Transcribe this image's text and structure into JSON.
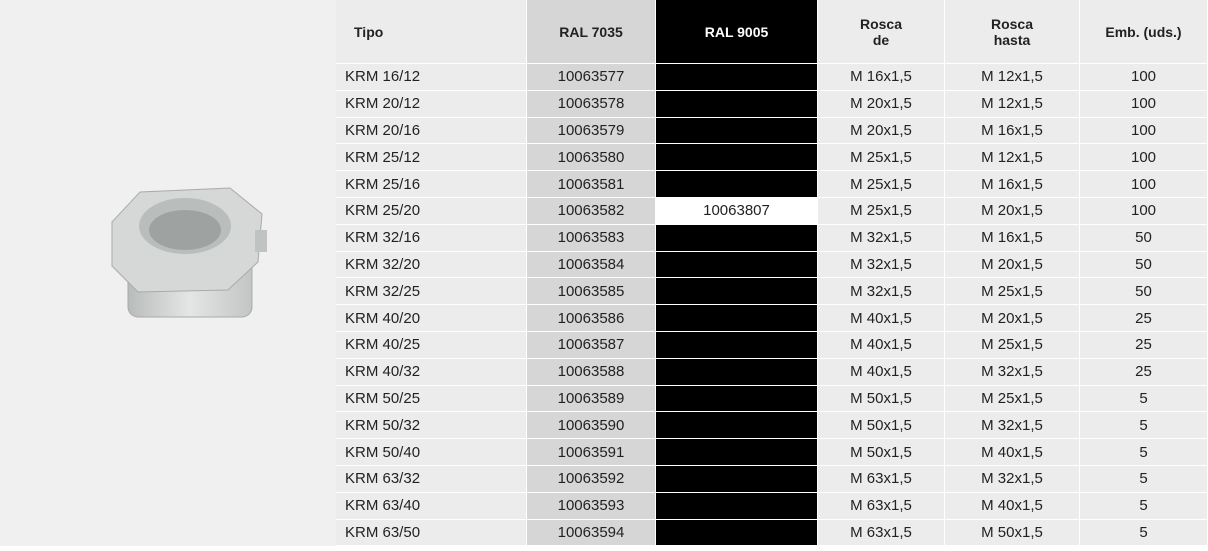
{
  "table": {
    "header": [
      "Tipo",
      "RAL 7035",
      "RAL 9005",
      "Rosca\nde",
      "Rosca\nhasta",
      "Emb. (uds.)"
    ],
    "rows": [
      [
        "KRM 16/12",
        "10063577",
        null,
        "M 16x1,5",
        "M 12x1,5",
        "100"
      ],
      [
        "KRM 20/12",
        "10063578",
        null,
        "M 20x1,5",
        "M 12x1,5",
        "100"
      ],
      [
        "KRM 20/16",
        "10063579",
        null,
        "M 20x1,5",
        "M 16x1,5",
        "100"
      ],
      [
        "KRM 25/12",
        "10063580",
        null,
        "M 25x1,5",
        "M 12x1,5",
        "100"
      ],
      [
        "KRM 25/16",
        "10063581",
        null,
        "M 25x1,5",
        "M 16x1,5",
        "100"
      ],
      [
        "KRM 25/20",
        "10063582",
        "10063807",
        "M 25x1,5",
        "M 20x1,5",
        "100"
      ],
      [
        "KRM 32/16",
        "10063583",
        null,
        "M 32x1,5",
        "M 16x1,5",
        "50"
      ],
      [
        "KRM 32/20",
        "10063584",
        null,
        "M 32x1,5",
        "M 20x1,5",
        "50"
      ],
      [
        "KRM 32/25",
        "10063585",
        null,
        "M 32x1,5",
        "M 25x1,5",
        "50"
      ],
      [
        "KRM 40/20",
        "10063586",
        null,
        "M 40x1,5",
        "M 20x1,5",
        "25"
      ],
      [
        "KRM 40/25",
        "10063587",
        null,
        "M 40x1,5",
        "M 25x1,5",
        "25"
      ],
      [
        "KRM 40/32",
        "10063588",
        null,
        "M 40x1,5",
        "M 32x1,5",
        "25"
      ],
      [
        "KRM 50/25",
        "10063589",
        null,
        "M 50x1,5",
        "M 25x1,5",
        "5"
      ],
      [
        "KRM 50/32",
        "10063590",
        null,
        "M 50x1,5",
        "M 32x1,5",
        "5"
      ],
      [
        "KRM 50/40",
        "10063591",
        null,
        "M 50x1,5",
        "M 40x1,5",
        "5"
      ],
      [
        "KRM 63/32",
        "10063592",
        null,
        "M 63x1,5",
        "M 32x1,5",
        "5"
      ],
      [
        "KRM 63/40",
        "10063593",
        null,
        "M 63x1,5",
        "M 40x1,5",
        "5"
      ],
      [
        "KRM 63/50",
        "10063594",
        null,
        "M 63x1,5",
        "M 50x1,5",
        "5"
      ]
    ]
  }
}
